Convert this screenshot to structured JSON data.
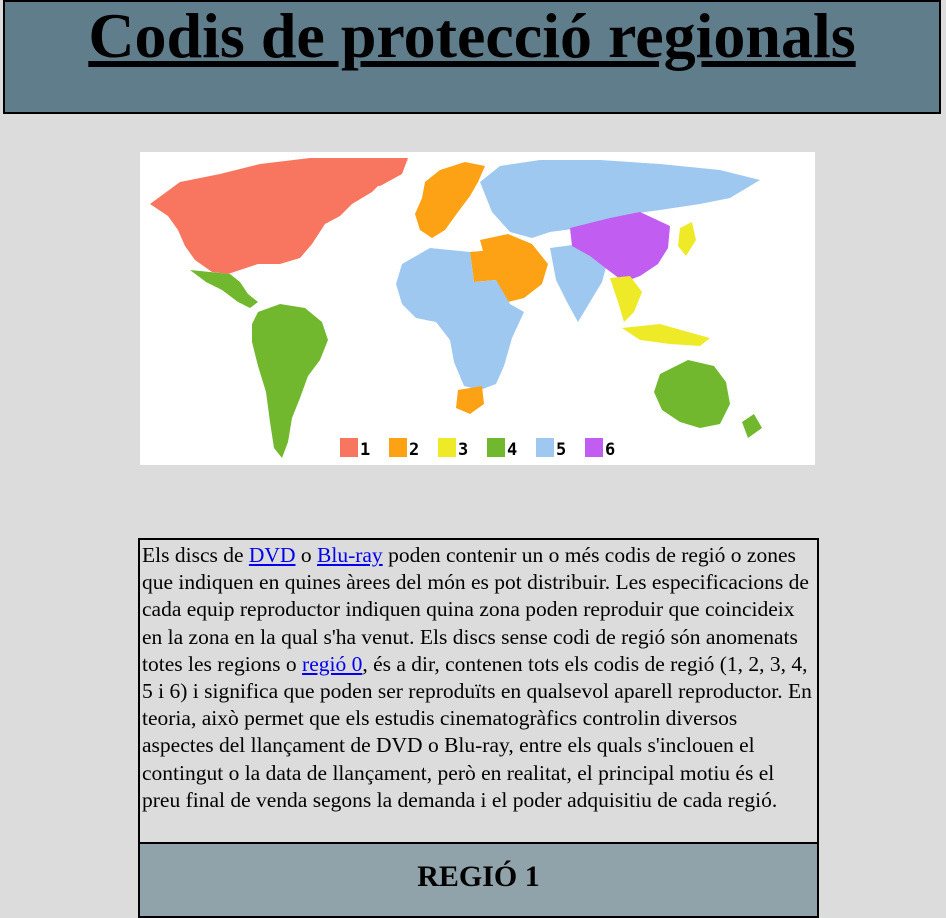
{
  "header": {
    "title": "Codis de protecció regionals"
  },
  "map": {
    "legend": [
      {
        "label": "1",
        "color": "#f87660"
      },
      {
        "label": "2",
        "color": "#fda215"
      },
      {
        "label": "3",
        "color": "#eeea27"
      },
      {
        "label": "4",
        "color": "#72b82f"
      },
      {
        "label": "5",
        "color": "#9ec8f0"
      },
      {
        "label": "6",
        "color": "#c25df1"
      }
    ]
  },
  "text": {
    "part1": "Els discs de ",
    "link_dvd": "DVD",
    "part2": " o ",
    "link_bluray": "Blu-ray",
    "part3": " poden contenir un o més codis de regió o zones que indiquen en quines àrees del món es pot distribuir. Les especificacions de cada equip reproductor indiquen quina zona poden reproduir que coincideix en la zona en la qual s'ha venut. Els discs sense codi de regió són anomenats totes les regions o ",
    "link_region0": "regió 0",
    "part4": ", és a dir, contenen tots els codis de regió (1, 2, 3, 4, 5 i 6) i significa que poden ser reproduïts en qualsevol aparell reproductor. En teoria, això permet que els estudis cinematogràfics controlin diversos aspectes del llançament de DVD o Blu-ray, entre els quals s'inclouen el contingut o la data de llançament, però en realitat, el principal motiu és el preu final de venda segons la demanda i el poder adquisitiu de cada regió."
  },
  "section": {
    "title": "REGIÓ 1"
  }
}
